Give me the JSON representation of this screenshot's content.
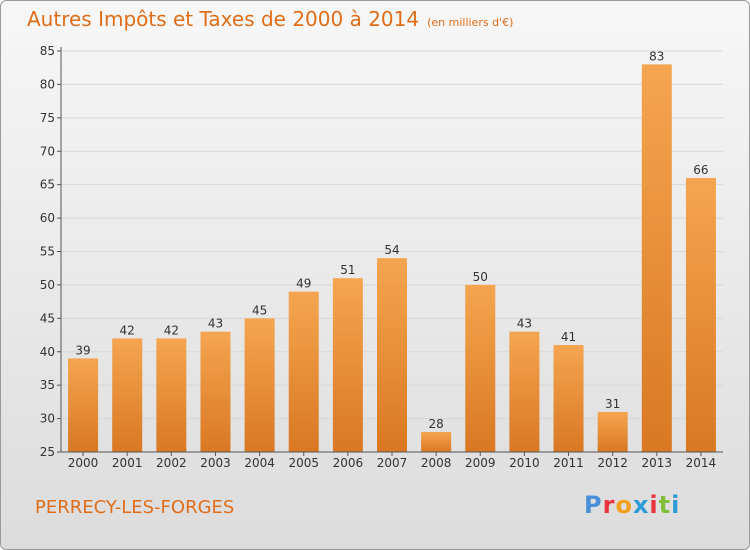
{
  "header": {
    "title": "Autres Impôts et Taxes de 2000 à 2014",
    "unit": "(en milliers d'€)"
  },
  "footer": {
    "place": "PERRECY-LES-FORGES",
    "brand": "Proxiti"
  },
  "colors": {
    "accent": "#e06d18",
    "bar_light": "#f5a550",
    "bar_dark": "#d97822",
    "grid": "#d7d7d7",
    "axis_text": "#333333",
    "logo_letters": [
      "#4a90d9",
      "#e8343f",
      "#f2a01c",
      "#2f9bd6",
      "#e8343f",
      "#7fbf3a",
      "#2f9bd6"
    ]
  },
  "chart_data": {
    "type": "bar",
    "title": "Autres Impôts et Taxes de 2000 à 2014",
    "subtitle": "(en milliers d'€)",
    "xlabel": "",
    "ylabel": "",
    "categories": [
      "2000",
      "2001",
      "2002",
      "2003",
      "2004",
      "2005",
      "2006",
      "2007",
      "2008",
      "2009",
      "2010",
      "2011",
      "2012",
      "2013",
      "2014"
    ],
    "values": [
      39,
      42,
      42,
      43,
      45,
      49,
      51,
      54,
      28,
      50,
      43,
      41,
      31,
      83,
      66
    ],
    "ylim": [
      25,
      85
    ],
    "yticks": [
      25,
      30,
      35,
      40,
      45,
      50,
      55,
      60,
      65,
      70,
      75,
      80,
      85
    ],
    "grid": true,
    "legend": "none"
  }
}
